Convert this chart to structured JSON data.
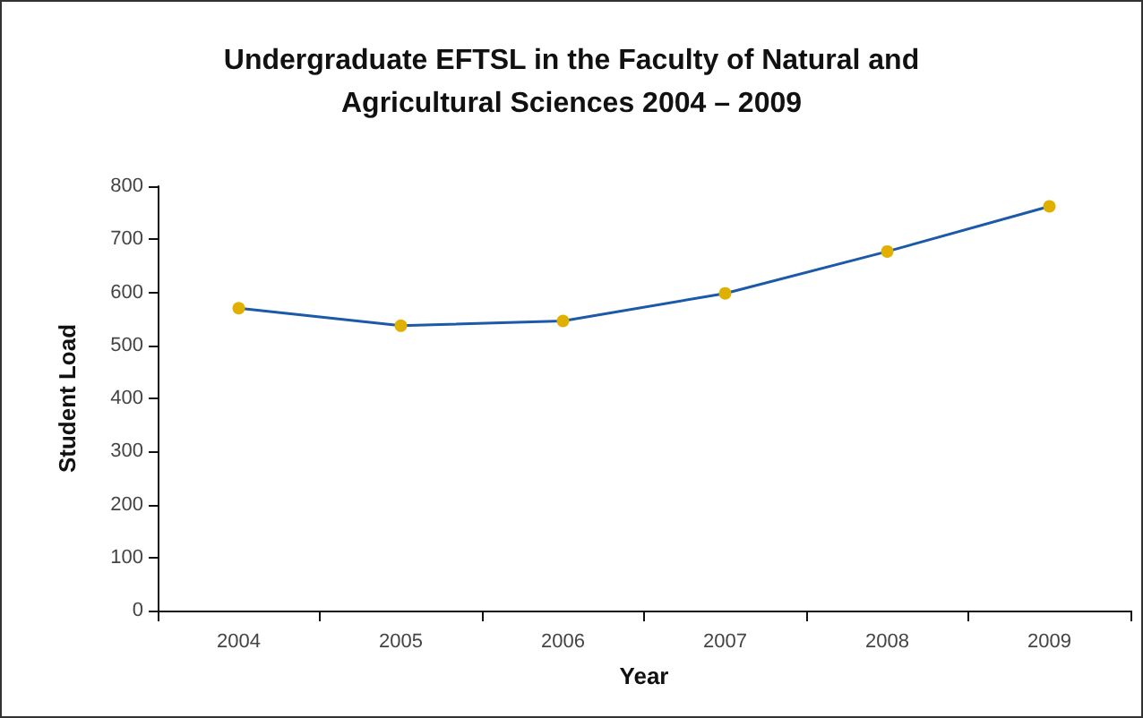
{
  "chart_data": {
    "type": "line",
    "title": "Undergraduate EFTSL in the Faculty of Natural and\nAgricultural Sciences 2004 – 2009",
    "xlabel": "Year",
    "ylabel": "Student Load",
    "categories": [
      "2004",
      "2005",
      "2006",
      "2007",
      "2008",
      "2009"
    ],
    "series": [
      {
        "color": "#1a5aa8",
        "values": [
          570,
          537,
          546,
          598,
          677,
          762
        ]
      }
    ],
    "ylim": [
      0,
      800
    ],
    "yticks": [
      0,
      100,
      200,
      300,
      400,
      500,
      600,
      700,
      800
    ],
    "grid": false,
    "marker": "circle",
    "line_style": "solid"
  }
}
